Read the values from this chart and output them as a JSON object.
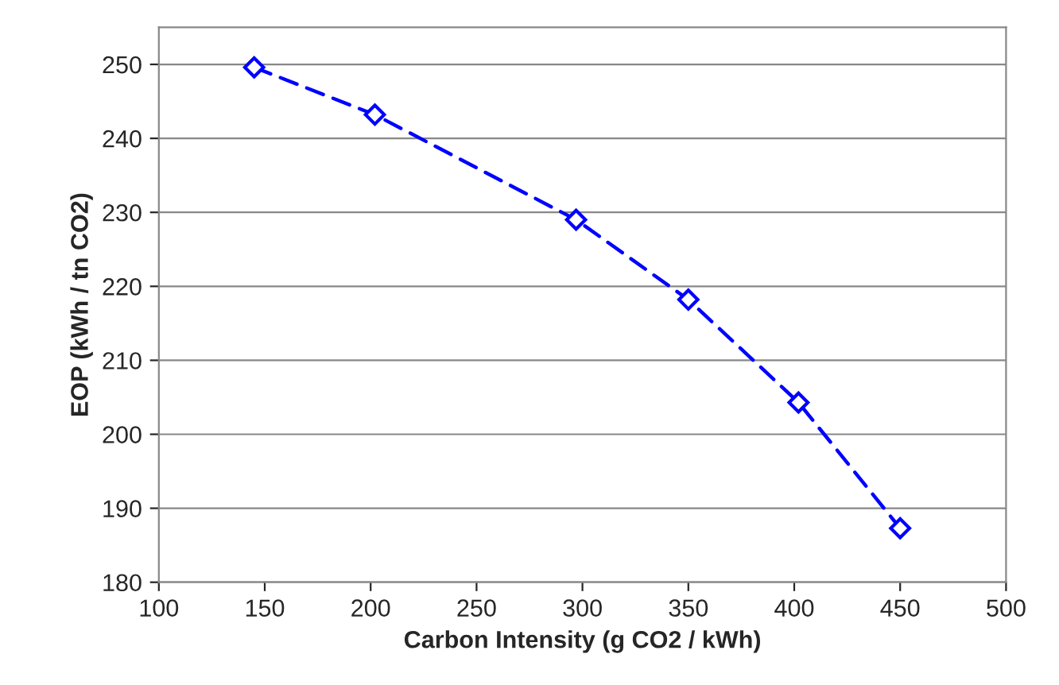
{
  "chart_data": {
    "type": "line",
    "xlabel": "Carbon Intensity (g CO2 / kWh)",
    "ylabel": "EOP (kWh / tn CO2)",
    "x": [
      145,
      202,
      297,
      350,
      402,
      450
    ],
    "series": [
      {
        "color": "#0000ff",
        "values": [
          249.6,
          243.2,
          229.0,
          218.2,
          204.3,
          187.3
        ]
      }
    ],
    "xlim": [
      100,
      500
    ],
    "xticks": [
      100,
      150,
      200,
      250,
      300,
      350,
      400,
      450,
      500
    ],
    "ylim": [
      180,
      255
    ],
    "yticks": [
      180,
      190,
      200,
      210,
      220,
      230,
      240,
      250
    ],
    "grid": "y",
    "marker": "diamond",
    "line_style": "dashed",
    "legend": false
  }
}
